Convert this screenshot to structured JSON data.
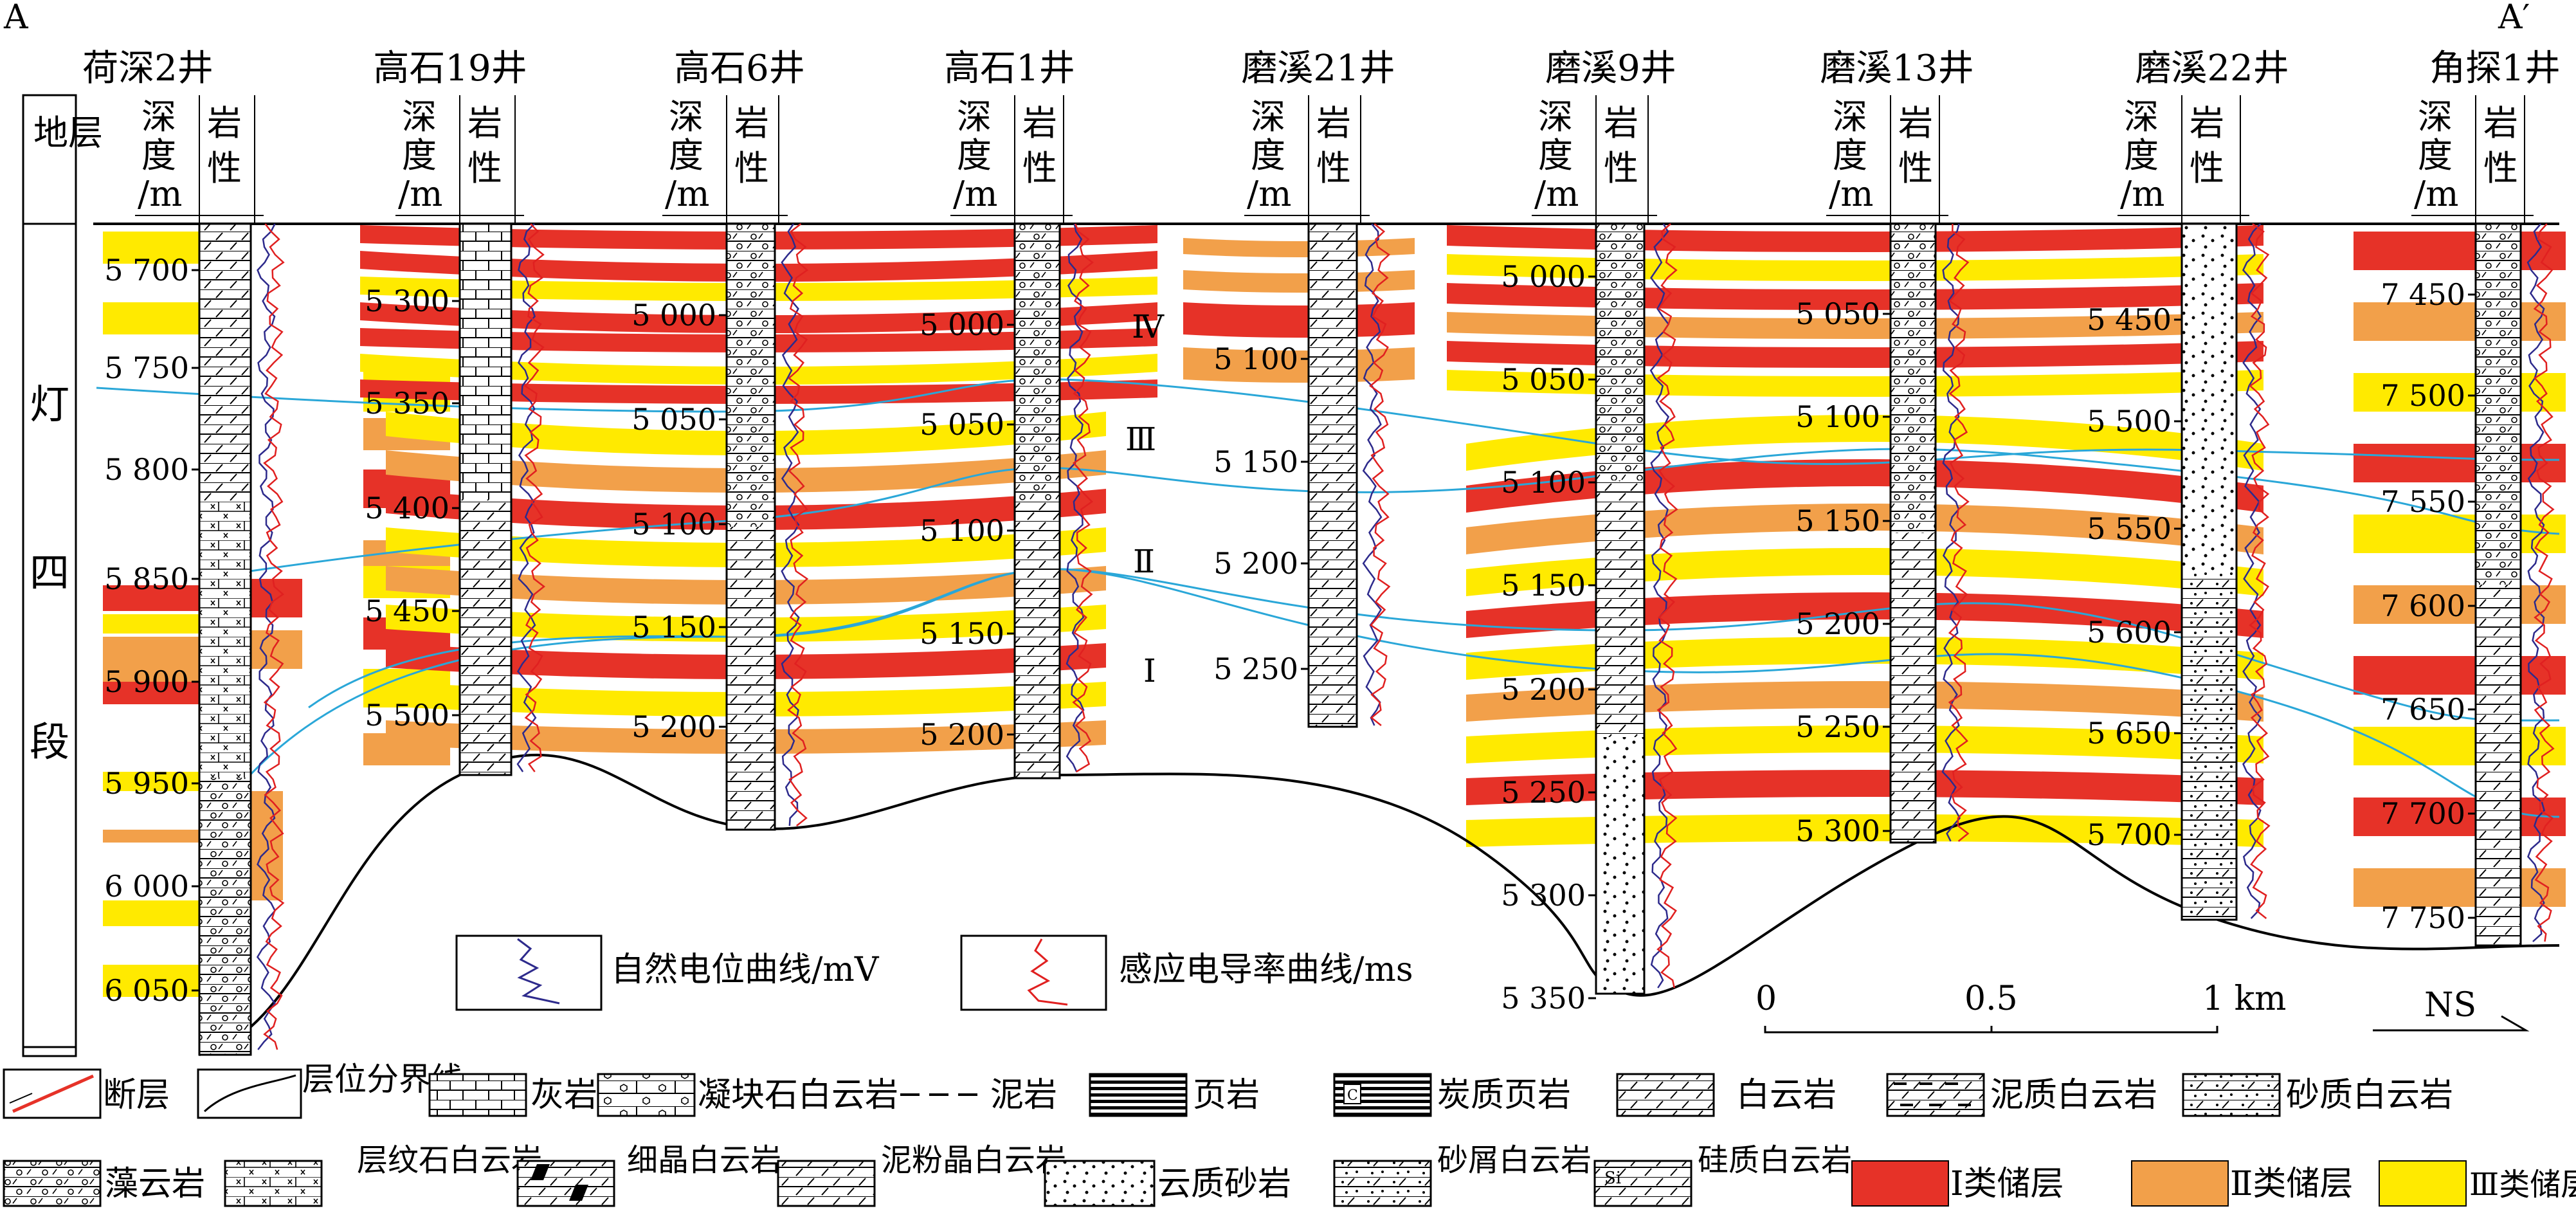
{
  "section": {
    "left_label": "A",
    "right_label": "A′"
  },
  "header": {
    "stratum": "地层",
    "depth": "深度/m",
    "lithology": "岩性"
  },
  "unit_label": [
    "灯",
    "四",
    "段"
  ],
  "wells": [
    {
      "name": "荷深2井",
      "depths": [
        "5 700",
        "5 750",
        "5 800",
        "5 850",
        "5 900",
        "5 950",
        "6 000",
        "6 050"
      ]
    },
    {
      "name": "高石19井",
      "depths": [
        "5 300",
        "5 350",
        "5 400",
        "5 450",
        "5 500"
      ]
    },
    {
      "name": "高石6井",
      "depths": [
        "5 000",
        "5 050",
        "5 100",
        "5 150",
        "5 200"
      ]
    },
    {
      "name": "高石1井",
      "depths": [
        "5 000",
        "5 050",
        "5 100",
        "5 150",
        "5 200"
      ]
    },
    {
      "name": "磨溪21井",
      "depths": [
        "5 100",
        "5 150",
        "5 200",
        "5 250"
      ]
    },
    {
      "name": "磨溪9井",
      "depths": [
        "5 000",
        "5 050",
        "5 100",
        "5 150",
        "5 200",
        "5 250",
        "5 300",
        "5 350"
      ]
    },
    {
      "name": "磨溪13井",
      "depths": [
        "5 050",
        "5 100",
        "5 150",
        "5 200",
        "5 250",
        "5 300"
      ]
    },
    {
      "name": "磨溪22井",
      "depths": [
        "5 450",
        "5 500",
        "5 550",
        "5 600",
        "5 650",
        "5 700"
      ]
    },
    {
      "name": "角探1井",
      "depths": [
        "7 450",
        "7 500",
        "7 550",
        "7 600",
        "7 650",
        "7 700",
        "7 750"
      ]
    }
  ],
  "horizons": [
    "Ⅳ",
    "Ⅲ",
    "Ⅱ",
    "Ⅰ"
  ],
  "curves": {
    "sp": "自然电位曲线/mV",
    "conductivity": "感应电导率曲线/ms"
  },
  "scale": {
    "labels": [
      "0",
      "0.5",
      "1 km"
    ],
    "direction": "NS"
  },
  "legend": {
    "fault": "断层",
    "boundary": "层位分界线",
    "limestone": "灰岩",
    "clot_dolomite": "凝块石白云岩",
    "mudstone": "泥岩",
    "shale": "页岩",
    "carbonaceous_shale": "炭质页岩",
    "dolomite": "白云岩",
    "argillaceous_dolomite": "泥质白云岩",
    "sandy_dolomite": "砂质白云岩",
    "algal_dolomite": "藻云岩",
    "laminated_dolomite": "层纹石白云岩",
    "fine_dolomite": "细晶白云岩",
    "silty_dolomite": "泥粉晶白云岩",
    "dolomitic_sandstone": "云质砂岩",
    "debris_dolomite": "砂屑白云岩",
    "siliceous_dolomite": "硅质白云岩",
    "class1": "Ⅰ类储层",
    "class2": "Ⅱ类储层",
    "class3": "Ⅲ类储层"
  },
  "colors": {
    "class1": "#e63228",
    "class2": "#f2a04a",
    "class3": "#ffea00",
    "horizon": "#2aa7d8",
    "sp": "#2d2a8c",
    "cond": "#e02020"
  }
}
